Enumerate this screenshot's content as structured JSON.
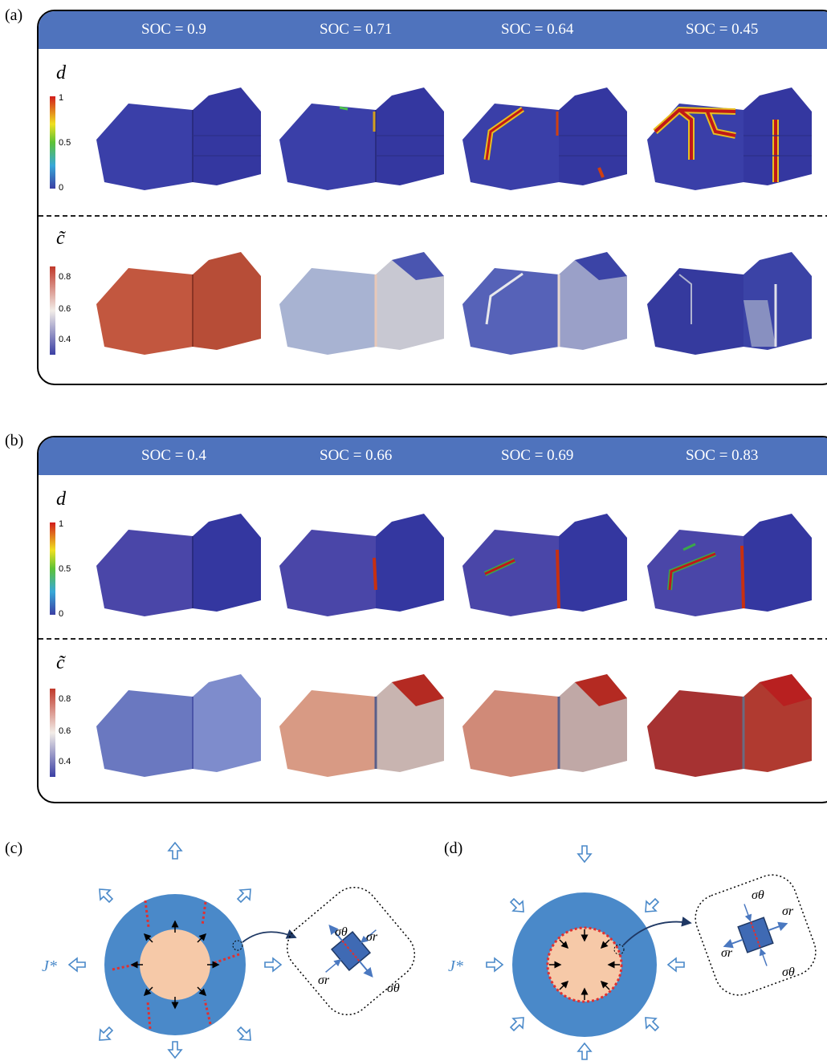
{
  "panels": {
    "a": {
      "letter": "(a)",
      "soc": [
        "SOC = 0.9",
        "SOC = 0.71",
        "SOC = 0.64",
        "SOC = 0.45"
      ],
      "damage_label": "d",
      "damage_ticks": [
        "1",
        "0.5",
        "0"
      ],
      "conc_label": "c̃",
      "conc_ticks": [
        "0.8",
        "0.6",
        "0.4"
      ]
    },
    "b": {
      "letter": "(b)",
      "soc": [
        "SOC = 0.4",
        "SOC = 0.66",
        "SOC = 0.69",
        "SOC = 0.83"
      ],
      "damage_label": "d",
      "damage_ticks": [
        "1",
        "0.5",
        "0"
      ],
      "conc_label": "c̃",
      "conc_ticks": [
        "0.8",
        "0.6",
        "0.4"
      ]
    },
    "c": {
      "letter": "(c)",
      "flux_label": "J*",
      "stress_theta": "σθ",
      "stress_r": "σr",
      "stress_r2": "σr",
      "stress_theta2": "σθ"
    },
    "d": {
      "letter": "(d)",
      "flux_label": "J*",
      "stress_theta": "σθ",
      "stress_r": "σr",
      "stress_r2": "σr",
      "stress_theta2": "σθ"
    }
  },
  "colors": {
    "header": "#4f73bd",
    "particle_blue": "#3a3fa8",
    "particle_red": "#b8392a",
    "shell": "#4a89c9",
    "core": "#f6c9a8",
    "crack": "#e03030"
  }
}
